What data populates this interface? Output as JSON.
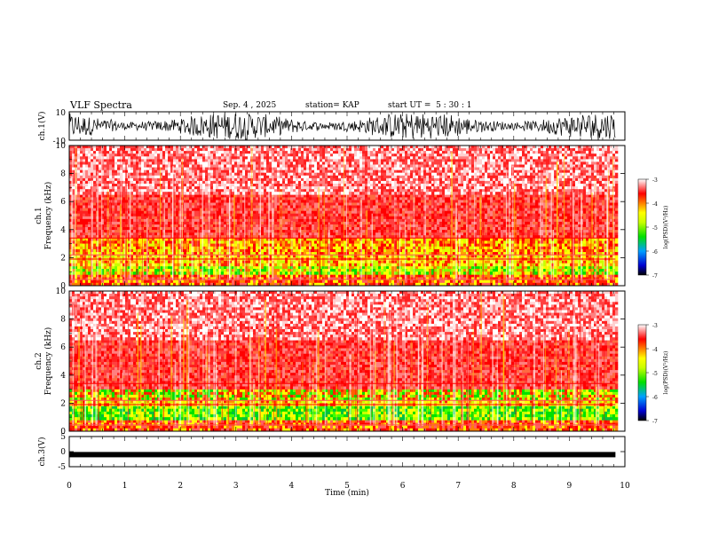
{
  "header": {
    "title": "VLF Spectra",
    "date": "Sep. 4 , 2025",
    "station": "station= KAP",
    "start": "start UT =  5 : 30 : 1"
  },
  "chart_data": [
    {
      "type": "line",
      "panel": "ch1-waveform",
      "ylabel": "ch.1(V)",
      "ylim": [
        -10,
        10
      ],
      "ytick_labels": [
        "10",
        "-10"
      ],
      "description_values": "dense oscillating waveform between -10 and 10 V"
    },
    {
      "type": "heatmap",
      "panel": "ch1-spectrogram",
      "ylabel_line1": "ch.1",
      "ylabel_line2": "Frequency  (kHz)",
      "ylim": [
        0,
        10
      ],
      "ytick_labels": [
        "0",
        "2",
        "4",
        "6",
        "8",
        "10"
      ],
      "colorbar": {
        "label": "log(PSD)(V²/Hz)",
        "range": [
          -7,
          -3
        ],
        "tick_labels": [
          "-3",
          "-4",
          "-5",
          "-6",
          "-7"
        ]
      },
      "bands": [
        {
          "fmin": 0.0,
          "fmax": 0.8,
          "level": "red-orange"
        },
        {
          "fmin": 0.8,
          "fmax": 1.4,
          "level": "yellow-green"
        },
        {
          "fmin": 1.4,
          "fmax": 2.2,
          "level": "yellow"
        },
        {
          "fmin": 2.2,
          "fmax": 3.4,
          "level": "yellow-orange"
        },
        {
          "fmin": 3.4,
          "fmax": 6.5,
          "level": "red"
        },
        {
          "fmin": 6.5,
          "fmax": 10.0,
          "level": "light-red"
        }
      ]
    },
    {
      "type": "heatmap",
      "panel": "ch2-spectrogram",
      "ylabel_line1": "ch.2",
      "ylabel_line2": "Frequency  (kHz)",
      "ylim": [
        0,
        10
      ],
      "ytick_labels": [
        "0",
        "2",
        "4",
        "6",
        "8",
        "10"
      ],
      "colorbar": {
        "label": "log(PSD)(V²/Hz)",
        "range": [
          -7,
          -3
        ],
        "tick_labels": [
          "-3",
          "-4",
          "-5",
          "-6",
          "-7"
        ]
      },
      "bands": [
        {
          "fmin": 0.0,
          "fmax": 0.8,
          "level": "red-orange"
        },
        {
          "fmin": 0.8,
          "fmax": 1.8,
          "level": "green"
        },
        {
          "fmin": 1.8,
          "fmax": 2.2,
          "level": "yellow"
        },
        {
          "fmin": 2.2,
          "fmax": 3.0,
          "level": "green-yellow"
        },
        {
          "fmin": 3.0,
          "fmax": 6.5,
          "level": "red"
        },
        {
          "fmin": 6.5,
          "fmax": 10.0,
          "level": "light-red"
        }
      ]
    },
    {
      "type": "line",
      "panel": "ch3-waveform",
      "ylabel": "ch.3(V)",
      "ylim": [
        -5,
        5
      ],
      "ytick_labels": [
        "5",
        "0",
        "-5"
      ],
      "constant_value": -1,
      "xlabel": "Time  (min)",
      "xlim": [
        0,
        10
      ],
      "xtick_labels": [
        "0",
        "1",
        "2",
        "3",
        "4",
        "5",
        "6",
        "7",
        "8",
        "9",
        "10"
      ]
    }
  ]
}
